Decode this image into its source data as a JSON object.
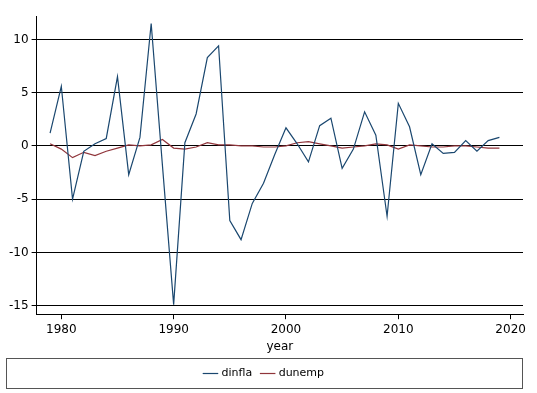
{
  "chart_data": {
    "type": "line",
    "x_label": "year",
    "x": [
      1979,
      1980,
      1981,
      1982,
      1983,
      1984,
      1985,
      1986,
      1987,
      1988,
      1989,
      1990,
      1991,
      1992,
      1993,
      1994,
      1995,
      1996,
      1997,
      1998,
      1999,
      2000,
      2001,
      2002,
      2003,
      2004,
      2005,
      2006,
      2007,
      2008,
      2009,
      2010,
      2011,
      2012,
      2013,
      2014,
      2015,
      2016,
      2017,
      2018,
      2019
    ],
    "series": [
      {
        "name": "dinfla",
        "color": "#1a476f",
        "values": [
          1.2,
          5.6,
          -5.0,
          -0.5,
          0.2,
          0.7,
          6.5,
          -2.7,
          0.8,
          11.5,
          -1.8,
          -14.9,
          0.3,
          3.0,
          8.3,
          9.4,
          -7.0,
          -8.8,
          -5.4,
          -3.5,
          -0.8,
          1.7,
          0.2,
          -1.5,
          1.9,
          2.6,
          -2.1,
          -0.3,
          3.2,
          1.0,
          -6.6,
          4.0,
          1.8,
          -2.7,
          0.2,
          -0.7,
          -0.6,
          0.5,
          -0.5,
          0.5,
          0.8
        ]
      },
      {
        "name": "dunemp",
        "color": "#90353b",
        "values": [
          0.2,
          -0.3,
          -1.1,
          -0.6,
          -0.9,
          -0.5,
          -0.2,
          0.1,
          0.0,
          0.1,
          0.6,
          -0.2,
          -0.3,
          -0.1,
          0.3,
          0.1,
          0.1,
          0.0,
          0.0,
          -0.1,
          -0.1,
          0.0,
          0.3,
          0.4,
          0.2,
          0.0,
          -0.2,
          -0.1,
          0.0,
          0.2,
          0.1,
          -0.3,
          0.1,
          0.0,
          -0.1,
          -0.1,
          0.0,
          0.0,
          -0.1,
          -0.2,
          -0.2
        ]
      }
    ],
    "xlim": [
      1977.8,
      2021.1
    ],
    "xticks": [
      1980,
      1990,
      2000,
      2010,
      2020
    ],
    "ylim": [
      -15.8,
      12.2
    ],
    "yticks": [
      -15,
      -10,
      -5,
      0,
      5,
      10
    ],
    "grid": true,
    "legend": "bottom"
  }
}
